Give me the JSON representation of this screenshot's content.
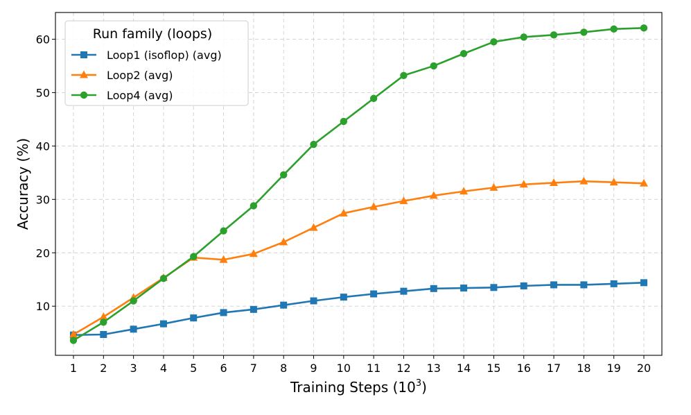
{
  "chart_data": {
    "type": "line",
    "title": "",
    "xlabel": "Training Steps (10",
    "xlabel_sup": "3",
    "xlabel_close": ")",
    "ylabel": "Accuracy (%)",
    "x": [
      1,
      2,
      3,
      4,
      5,
      6,
      7,
      8,
      9,
      10,
      11,
      12,
      13,
      14,
      15,
      16,
      17,
      18,
      19,
      20
    ],
    "xlim": [
      0.4,
      20.6
    ],
    "ylim": [
      0.8,
      65.0
    ],
    "yticks": [
      10,
      20,
      30,
      40,
      50,
      60
    ],
    "grid": true,
    "legend": {
      "title": "Run family (loops)",
      "placement": "top-left"
    },
    "series": [
      {
        "name": "Loop1 (isoflop) (avg)",
        "color": "#1f77b4",
        "marker": "square",
        "values": [
          4.6,
          4.7,
          5.7,
          6.7,
          7.8,
          8.8,
          9.4,
          10.2,
          11.0,
          11.7,
          12.3,
          12.8,
          13.3,
          13.4,
          13.5,
          13.8,
          14.0,
          14.0,
          14.2,
          14.4
        ]
      },
      {
        "name": "Loop2 (avg)",
        "color": "#ff7f0e",
        "marker": "triangle",
        "values": [
          4.7,
          8.0,
          11.6,
          15.3,
          19.1,
          18.7,
          19.8,
          22.0,
          24.7,
          27.4,
          28.6,
          29.7,
          30.7,
          31.5,
          32.2,
          32.8,
          33.1,
          33.4,
          33.2,
          33.0
        ]
      },
      {
        "name": "Loop4 (avg)",
        "color": "#2ca02c",
        "marker": "circle",
        "values": [
          3.6,
          7.0,
          11.0,
          15.2,
          19.3,
          24.1,
          28.8,
          34.6,
          40.3,
          44.6,
          48.9,
          53.2,
          55.0,
          57.3,
          59.5,
          60.4,
          60.8,
          61.3,
          61.9,
          62.1
        ]
      }
    ]
  }
}
